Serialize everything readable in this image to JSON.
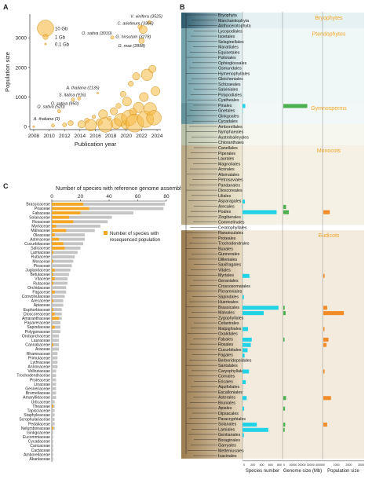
{
  "panels": {
    "a": "A",
    "b": "B",
    "c": "C"
  },
  "chart_data": [
    {
      "type": "scatter",
      "ylabel": "Population size",
      "xlabel": "Publication year",
      "xlim": [
        2007.5,
        2024.5
      ],
      "ylim": [
        -100,
        3800
      ],
      "xticks": [
        2008,
        2010,
        2012,
        2014,
        2016,
        2018,
        2020,
        2022,
        2024
      ],
      "yticks": [
        0,
        1000,
        2000,
        3000
      ],
      "legend": {
        "placement": "top-left",
        "items": [
          {
            "label": "10 Gb",
            "gb": 10
          },
          {
            "label": "1 Gb",
            "gb": 1
          },
          {
            "label": "0.1 Gb",
            "gb": 0.1
          }
        ]
      },
      "annotations": [
        {
          "text": "V. vinifera (3525)",
          "x": 2023.0,
          "y": 3525,
          "gb": 0.5
        },
        {
          "text": "C. arietinum (3366)",
          "x": 2021.8,
          "y": 3366,
          "gb": 0.7
        },
        {
          "text": "O. sativa (3010)",
          "x": 2018.2,
          "y": 3010,
          "gb": 0.4
        },
        {
          "text": "G. hirsutum (3278)",
          "x": 2022.2,
          "y": 3278,
          "gb": 2.3
        },
        {
          "text": "G. max (2898)",
          "x": 2022.0,
          "y": 2898,
          "gb": 1.1
        },
        {
          "text": "A. thaliana (1135)",
          "x": 2016.3,
          "y": 1135,
          "gb": 0.13
        },
        {
          "text": "S. italica (916)",
          "x": 2013.1,
          "y": 916,
          "gb": 0.4
        },
        {
          "text": "O. sativa (950)",
          "x": 2013.9,
          "y": 950,
          "gb": 0.4
        },
        {
          "text": "O. sativa (520)",
          "x": 2011.3,
          "y": 520,
          "gb": 0.4
        },
        {
          "text": "A. thaliana (3)",
          "x": 2009.0,
          "y": 3,
          "gb": 0.13
        }
      ],
      "points": [
        {
          "x": 2008,
          "y": 3,
          "gb": 0.13
        },
        {
          "x": 2010.5,
          "y": 40,
          "gb": 0.4
        },
        {
          "x": 2011.3,
          "y": 520,
          "gb": 0.4
        },
        {
          "x": 2012.0,
          "y": 60,
          "gb": 0.6
        },
        {
          "x": 2012.8,
          "y": 120,
          "gb": 1.0
        },
        {
          "x": 2013.1,
          "y": 916,
          "gb": 0.4
        },
        {
          "x": 2013.9,
          "y": 950,
          "gb": 0.4
        },
        {
          "x": 2014.2,
          "y": 80,
          "gb": 2.0
        },
        {
          "x": 2014.9,
          "y": 210,
          "gb": 0.8
        },
        {
          "x": 2015.4,
          "y": 50,
          "gb": 5.0
        },
        {
          "x": 2015.8,
          "y": 330,
          "gb": 0.5
        },
        {
          "x": 2016.3,
          "y": 1135,
          "gb": 0.13
        },
        {
          "x": 2016.5,
          "y": 150,
          "gb": 1.5
        },
        {
          "x": 2017.0,
          "y": 420,
          "gb": 3.0
        },
        {
          "x": 2017.3,
          "y": 60,
          "gb": 8.0
        },
        {
          "x": 2017.8,
          "y": 280,
          "gb": 0.6
        },
        {
          "x": 2018.2,
          "y": 3010,
          "gb": 0.4
        },
        {
          "x": 2018.4,
          "y": 520,
          "gb": 2.0
        },
        {
          "x": 2018.7,
          "y": 100,
          "gb": 4.0
        },
        {
          "x": 2019.0,
          "y": 700,
          "gb": 1.0
        },
        {
          "x": 2019.3,
          "y": 230,
          "gb": 6.0
        },
        {
          "x": 2019.6,
          "y": 1100,
          "gb": 1.2
        },
        {
          "x": 2019.9,
          "y": 60,
          "gb": 2.5
        },
        {
          "x": 2020.1,
          "y": 850,
          "gb": 3.0
        },
        {
          "x": 2020.4,
          "y": 300,
          "gb": 9.0
        },
        {
          "x": 2020.6,
          "y": 1450,
          "gb": 1.0
        },
        {
          "x": 2020.9,
          "y": 500,
          "gb": 2.0
        },
        {
          "x": 2021.1,
          "y": 120,
          "gb": 12.0
        },
        {
          "x": 2021.3,
          "y": 1700,
          "gb": 2.0
        },
        {
          "x": 2021.6,
          "y": 650,
          "gb": 4.0
        },
        {
          "x": 2021.8,
          "y": 3366,
          "gb": 0.7
        },
        {
          "x": 2022.0,
          "y": 2898,
          "gb": 1.1
        },
        {
          "x": 2022.2,
          "y": 3278,
          "gb": 2.3
        },
        {
          "x": 2022.3,
          "y": 1000,
          "gb": 3.0
        },
        {
          "x": 2022.5,
          "y": 250,
          "gb": 10.0
        },
        {
          "x": 2022.7,
          "y": 1750,
          "gb": 5.0
        },
        {
          "x": 2023.0,
          "y": 3525,
          "gb": 0.5
        },
        {
          "x": 2023.1,
          "y": 600,
          "gb": 6.0
        },
        {
          "x": 2023.4,
          "y": 1950,
          "gb": 2.0
        },
        {
          "x": 2023.6,
          "y": 300,
          "gb": 8.0
        },
        {
          "x": 2023.8,
          "y": 1200,
          "gb": 3.0
        }
      ]
    },
    {
      "type": "bar",
      "title": "Number of species with reference genome assembly",
      "xlim": [
        0,
        80
      ],
      "xticks": [
        0,
        20,
        40,
        60,
        80
      ],
      "legend": {
        "placement": "right",
        "label": "Number of species with resequenced population",
        "color": "#f5a623"
      },
      "colors": {
        "total": "#c4c4c4",
        "reseq": "#f5a623"
      },
      "categories": [
        "Brassicaceae",
        "Poaceae",
        "Fabaceae",
        "Solanaceae",
        "Rosaceae",
        "Myrtaceae",
        "Malvaceae",
        "Oleaceae",
        "Asteraceae",
        "Cucurbitaceae",
        "Salicaceae",
        "Lamiaceae",
        "Rubiaceae",
        "Moraceae",
        "Pinaceae",
        "Juglandaceae",
        "Betulaceae",
        "Vitaceae",
        "Rutaceae",
        "Orchidaceae",
        "Fagaceae",
        "Convolvulaceae",
        "Arecaceae",
        "Apiaceae",
        "Euphorbiaceae",
        "Dioscoreaceae",
        "Amaranthaceae",
        "Papaveraceae",
        "Sapindaceae",
        "Polygonaceae",
        "Orobanchaceae",
        "Lauraceae",
        "Cannabaceae",
        "Araceae",
        "Rhamnaceae",
        "Primulaceae",
        "Lythraceae",
        "Annonaceae",
        "Velloziaceae",
        "Trochodendraceae",
        "Proteaceae",
        "Linaceae",
        "Gesneriaceae",
        "Bromeliaceae",
        "Amaryllidaceae",
        "Urticaceae",
        "Theaceae",
        "Tapisciaceae",
        "Staphyleaceae",
        "Scrophulariaceae",
        "Pedaliaceae",
        "Nelumbonaceae",
        "Ginkgoaceae",
        "Eucommiaceae",
        "Cycadaceae",
        "Caricaceae",
        "Cactaceae",
        "Amborellaceae",
        "Akaniaceae"
      ],
      "series": [
        {
          "name": "Number of species with reference genome assembly",
          "values": [
            79,
            78,
            57,
            42,
            39,
            34,
            30,
            23,
            23,
            22,
            20,
            18,
            16,
            15,
            14,
            13,
            12,
            11,
            11,
            10,
            10,
            9,
            8,
            8,
            7,
            7,
            7,
            6,
            6,
            6,
            5,
            5,
            5,
            5,
            4,
            4,
            4,
            4,
            3,
            3,
            3,
            3,
            3,
            3,
            3,
            2,
            2,
            2,
            2,
            2,
            2,
            2,
            1,
            1,
            1,
            1,
            1,
            1,
            1
          ]
        },
        {
          "name": "Number of species with resequenced population",
          "values": [
            22,
            26,
            20,
            12,
            15,
            3,
            10,
            2,
            5,
            8,
            9,
            1,
            0,
            1,
            0,
            2,
            1,
            2,
            1,
            0,
            2,
            0,
            1,
            0,
            1,
            2,
            5,
            0,
            2,
            0,
            0,
            0,
            1,
            0,
            0,
            0,
            0,
            0,
            0,
            0,
            0,
            0,
            0,
            0,
            0,
            0,
            1,
            0,
            0,
            0,
            0,
            1,
            0,
            0,
            0,
            0,
            0,
            0,
            0
          ]
        }
      ]
    },
    {
      "type": "table",
      "groups": [
        {
          "name": "Bryophytes",
          "color": "#f5a623"
        },
        {
          "name": "Pteridophytes",
          "color": "#f5a623"
        },
        {
          "name": "Gymnosperms",
          "color": "#f5a623"
        },
        {
          "name": "Monocots",
          "color": "#f5a623"
        },
        {
          "name": "Eudicots",
          "color": "#f5a623"
        }
      ],
      "orders": [
        "Bryophyta",
        "Marchantiophyta",
        "Anthocerotophyta",
        "Lycopodiales",
        "Isoetales",
        "Selaginellales",
        "Marattiales",
        "Equisetales",
        "Psilotales",
        "Ophioglossales",
        "Osmundales",
        "Hymenophyllales",
        "Gleicheniales",
        "Schizaeales",
        "Salviniales",
        "Polypodiales",
        "Cyatheales",
        "Pinales",
        "Gnetales",
        "Ginkgoales",
        "Cycadales",
        "Amborellales",
        "Nymphaeales",
        "Austrobaileyales",
        "Chloranthales",
        "Canellales",
        "Piperales",
        "Laurales",
        "Magnoliales",
        "Acorales",
        "Alismatales",
        "Petrosaviales",
        "Pandanales",
        "Dioscoreales",
        "Liliales",
        "Asparagales",
        "Arecales",
        "Poales",
        "Zingiberales",
        "Commelinales",
        "Ceratophyllales",
        "Ranunculales",
        "Proteales",
        "Trochodendrales",
        "Buxales",
        "Gunnerales",
        "Dilleniales",
        "Saxifragales",
        "Vitales",
        "Myrtales",
        "Geraniales",
        "Crossosomatales",
        "Picramniales",
        "Sapindales",
        "Huerteales",
        "Brassicales",
        "Malvales",
        "Zygophyllales",
        "Celastrales",
        "Malpighiales",
        "Oxalidales",
        "Fabales",
        "Rosales",
        "Cucurbitales",
        "Fagales",
        "Berberidopsidales",
        "Santalales",
        "Caryophyllales",
        "Cornales",
        "Ericales",
        "Aquifoliales",
        "Escalloniales",
        "Asterales",
        "Bruniales",
        "Apiales",
        "Dipsacales",
        "Paracryphiales",
        "Solanales",
        "Lamiales",
        "Gentianales",
        "Boraginales",
        "Garryales",
        "Metteniusales",
        "Icacinales"
      ],
      "column_labels": [
        "Species number",
        "Genome size (Mb)",
        "Population size"
      ],
      "species_ticks": [
        "0",
        "200",
        "400",
        "600",
        "800"
      ],
      "genome_ticks": [
        "0",
        "10000",
        "20000",
        "30000",
        "40000"
      ],
      "population_ticks": [
        "0",
        "1000",
        "2000",
        "3000"
      ],
      "species_number": {
        "Polypodiales": 4,
        "Pinales": 60,
        "Gnetales": 6,
        "Asparagales": 52,
        "Arecales": 10,
        "Poales": 740,
        "Zingiberales": 6,
        "Myrtales": 150,
        "Sapindales": 30,
        "Brassicales": 780,
        "Malvales": 460,
        "Malpighiales": 120,
        "Fabales": 200,
        "Rosales": 180,
        "Cucurbitales": 110,
        "Fagales": 45,
        "Caryophyllales": 140,
        "Ericales": 70,
        "Asterales": 90,
        "Apiales": 35,
        "Solanales": 310,
        "Lamiales": 560,
        "Gentianales": 30
      },
      "genome_size": {
        "Pinales": 26000,
        "Poales": 6000,
        "Arecales": 3000,
        "Brassicales": 1500,
        "Malvales": 2500,
        "Asterales": 3000,
        "Solanales": 2000,
        "Lamiales": 1500,
        "Fabales": 1200,
        "Apiales": 1800
      },
      "population_size": {
        "Poales": 500,
        "Brassicales": 300,
        "Malvales": 1600,
        "Fabales": 400,
        "Rosales": 250,
        "Asterales": 600,
        "Solanales": 300,
        "Caryophyllales": 100,
        "Myrtales": 100,
        "Malpighiales": 80
      }
    }
  ]
}
